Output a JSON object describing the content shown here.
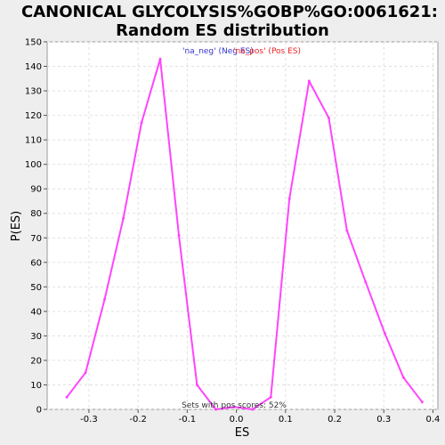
{
  "colors": {
    "background": "#eeeeee",
    "plot_background": "#ffffff",
    "series_line": "#ff44ff",
    "legend_neg": "#3333cc",
    "legend_pos": "#ee2222",
    "grid": "#e0e0e0"
  },
  "chart_data": {
    "type": "line",
    "title_line1": "CANONICAL GLYCOLYSIS%GOBP%GO:0061621:",
    "title_line2": "Random ES distribution",
    "xlabel": "ES",
    "ylabel": "P(ES)",
    "xlim": [
      -0.385,
      0.41
    ],
    "ylim": [
      0,
      150
    ],
    "x_ticks": [
      -0.3,
      -0.2,
      -0.1,
      0.0,
      0.1,
      0.2,
      0.3,
      0.4
    ],
    "x_tick_labels": [
      "-0.3",
      "-0.2",
      "-0.1",
      "0.0",
      "0.1",
      "0.2",
      "0.3",
      "0.4"
    ],
    "y_ticks": [
      0,
      10,
      20,
      30,
      40,
      50,
      60,
      70,
      80,
      90,
      100,
      110,
      120,
      130,
      140,
      150
    ],
    "y_tick_labels": [
      "0",
      "10",
      "20",
      "30",
      "40",
      "50",
      "60",
      "70",
      "80",
      "90",
      "100",
      "110",
      "120",
      "130",
      "140",
      "150"
    ],
    "grid": true,
    "legend": {
      "placement": "top-center",
      "neg_label": "'na_neg' (Neg ES)",
      "pos_label": "'na_pos' (Pos ES)"
    },
    "annotation": "Sets with pos scores: 52%",
    "series": [
      {
        "points": [
          [
            -0.345,
            5
          ],
          [
            -0.307,
            15
          ],
          [
            -0.268,
            45
          ],
          [
            -0.23,
            78
          ],
          [
            -0.193,
            117
          ],
          [
            -0.155,
            143
          ],
          [
            -0.117,
            71
          ],
          [
            -0.08,
            10
          ],
          [
            -0.042,
            0
          ],
          [
            -0.004,
            1
          ],
          [
            0.033,
            0
          ],
          [
            0.07,
            5
          ],
          [
            0.108,
            86
          ],
          [
            0.148,
            134
          ],
          [
            0.188,
            119
          ],
          [
            0.225,
            73
          ],
          [
            0.263,
            52
          ],
          [
            0.302,
            31
          ],
          [
            0.34,
            13
          ],
          [
            0.378,
            3
          ]
        ]
      }
    ]
  }
}
